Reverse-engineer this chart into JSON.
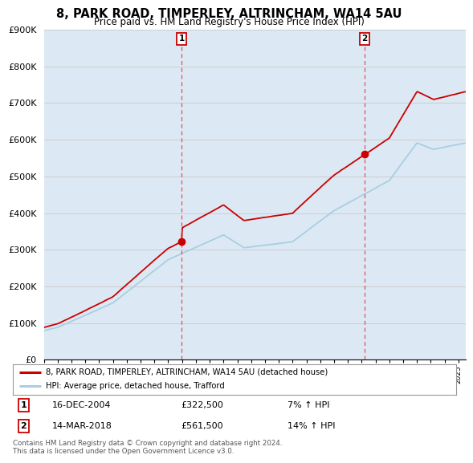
{
  "title": "8, PARK ROAD, TIMPERLEY, ALTRINCHAM, WA14 5AU",
  "subtitle": "Price paid vs. HM Land Registry's House Price Index (HPI)",
  "ylabel_ticks": [
    "£0",
    "£100K",
    "£200K",
    "£300K",
    "£400K",
    "£500K",
    "£600K",
    "£700K",
    "£800K",
    "£900K"
  ],
  "ylim": [
    0,
    900000
  ],
  "xlim_start": 1995.0,
  "xlim_end": 2025.5,
  "sale1_date": 2004.96,
  "sale1_price": 322500,
  "sale1_label": "1",
  "sale1_text": "16-DEC-2004",
  "sale1_amount": "£322,500",
  "sale1_hpi": "7% ↑ HPI",
  "sale2_date": 2018.2,
  "sale2_price": 561500,
  "sale2_label": "2",
  "sale2_text": "14-MAR-2018",
  "sale2_amount": "£561,500",
  "sale2_hpi": "14% ↑ HPI",
  "legend_line1": "8, PARK ROAD, TIMPERLEY, ALTRINCHAM, WA14 5AU (detached house)",
  "legend_line2": "HPI: Average price, detached house, Trafford",
  "footer": "Contains HM Land Registry data © Crown copyright and database right 2024.\nThis data is licensed under the Open Government Licence v3.0.",
  "hpi_color": "#a8cfe0",
  "price_color": "#cc0000",
  "sale_dot_color": "#cc0000",
  "bg_color": "#dce9f5",
  "plot_bg": "#ffffff",
  "grid_color": "#cccccc",
  "vline_color": "#dd4444"
}
